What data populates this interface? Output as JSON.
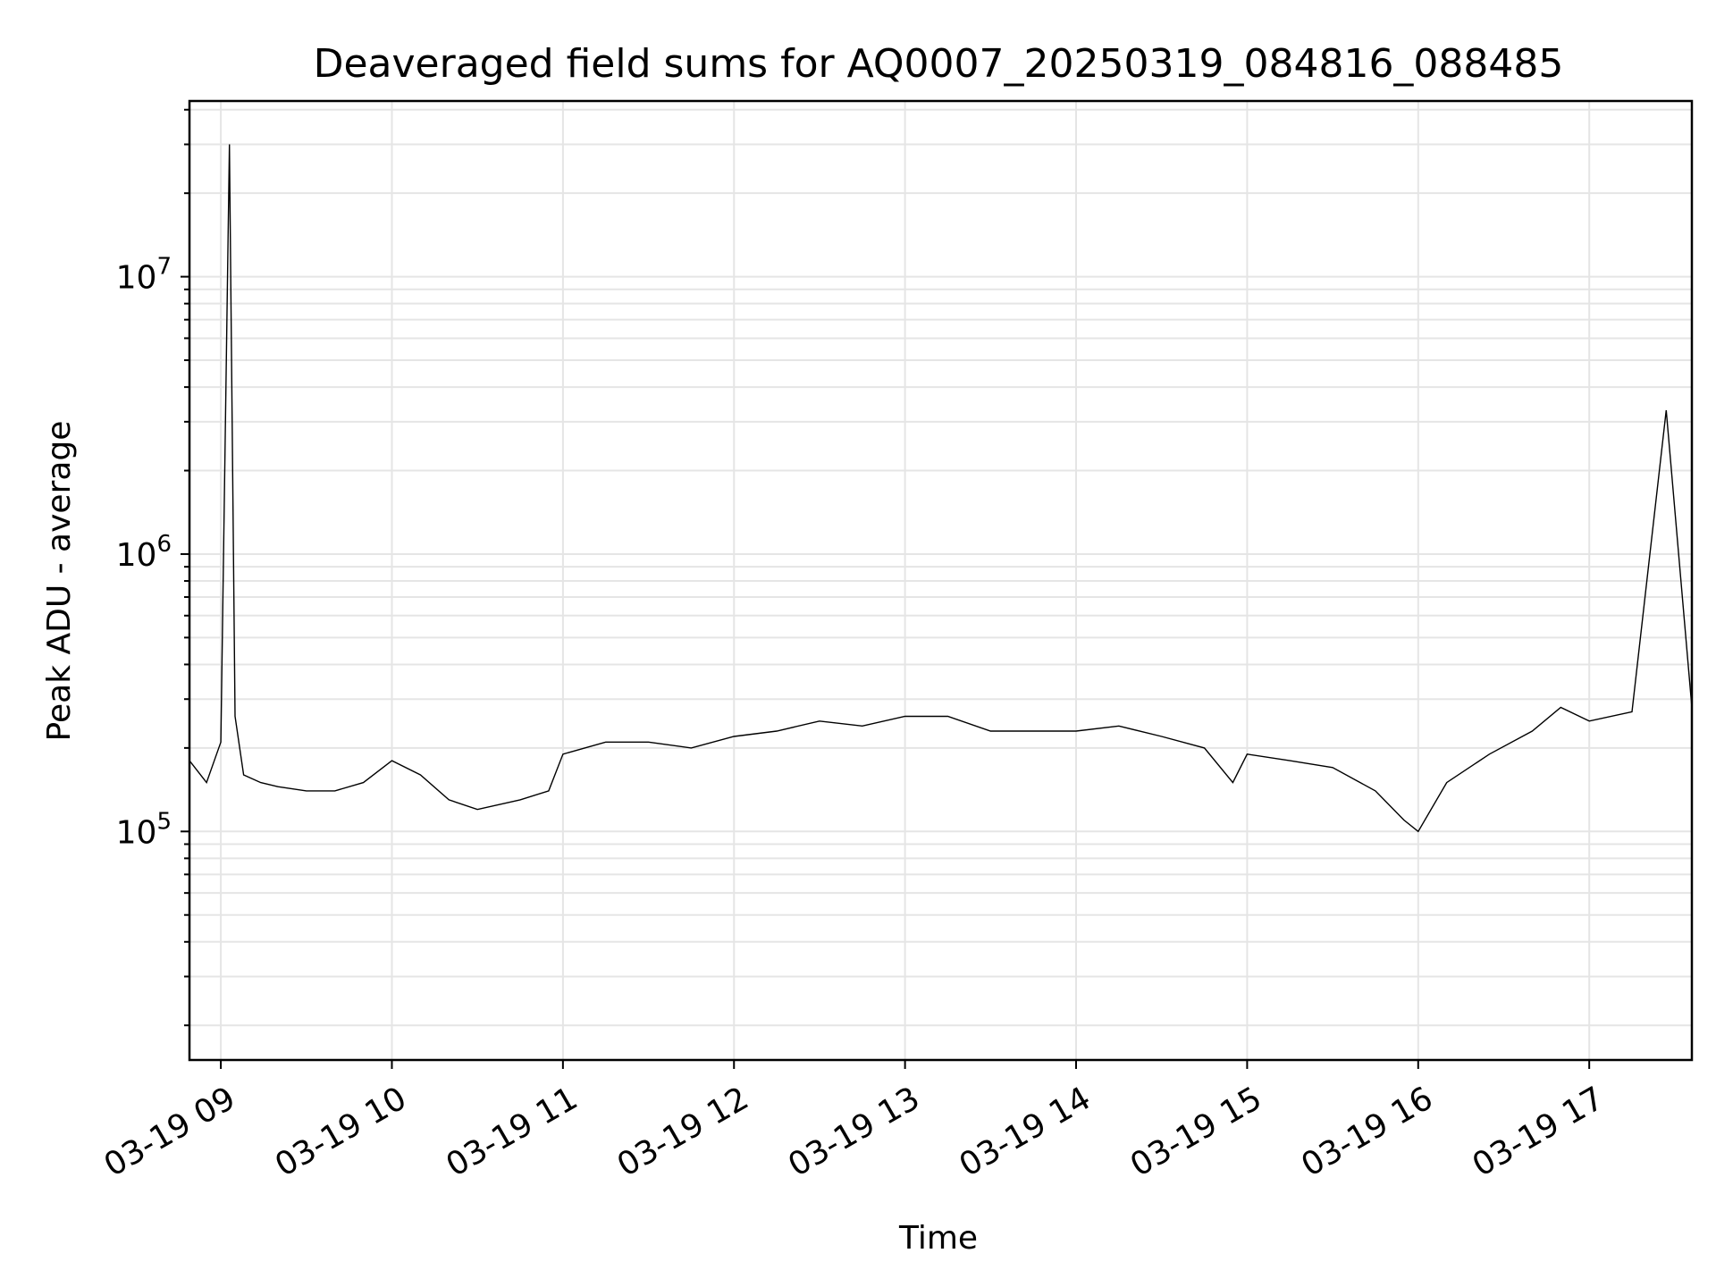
{
  "chart_data": {
    "type": "line",
    "title": "Deaveraged field sums for AQ0007_20250319_084816_088485",
    "xlabel": "Time",
    "ylabel": "Peak ADU - average",
    "x_axis": {
      "kind": "time",
      "range": [
        "2025-03-19T08:49:00",
        "2025-03-19T17:36:00"
      ],
      "tick_times": [
        "2025-03-19T09:00:00",
        "2025-03-19T10:00:00",
        "2025-03-19T11:00:00",
        "2025-03-19T12:00:00",
        "2025-03-19T13:00:00",
        "2025-03-19T14:00:00",
        "2025-03-19T15:00:00",
        "2025-03-19T16:00:00",
        "2025-03-19T17:00:00"
      ],
      "tick_labels": [
        "03-19 09",
        "03-19 10",
        "03-19 11",
        "03-19 12",
        "03-19 13",
        "03-19 14",
        "03-19 15",
        "03-19 16",
        "03-19 17"
      ]
    },
    "y_axis": {
      "scale": "log",
      "range": [
        15000,
        43000000
      ],
      "major_ticks": [
        100000,
        1000000,
        10000000
      ],
      "major_tick_labels": [
        {
          "base": "10",
          "exp": "5"
        },
        {
          "base": "10",
          "exp": "6"
        },
        {
          "base": "10",
          "exp": "7"
        }
      ],
      "minor_ticks": [
        20000,
        30000,
        40000,
        50000,
        60000,
        70000,
        80000,
        90000,
        200000,
        300000,
        400000,
        500000,
        600000,
        700000,
        800000,
        900000,
        2000000,
        3000000,
        4000000,
        5000000,
        6000000,
        7000000,
        8000000,
        9000000,
        20000000,
        30000000,
        40000000
      ]
    },
    "grid": true,
    "series": [
      {
        "color": "#000000",
        "x": [
          "2025-03-19T08:49:00",
          "2025-03-19T08:55:00",
          "2025-03-19T09:00:00",
          "2025-03-19T09:03:00",
          "2025-03-19T09:05:00",
          "2025-03-19T09:08:00",
          "2025-03-19T09:14:00",
          "2025-03-19T09:20:00",
          "2025-03-19T09:30:00",
          "2025-03-19T09:40:00",
          "2025-03-19T09:50:00",
          "2025-03-19T10:00:00",
          "2025-03-19T10:10:00",
          "2025-03-19T10:20:00",
          "2025-03-19T10:30:00",
          "2025-03-19T10:45:00",
          "2025-03-19T10:55:00",
          "2025-03-19T11:00:00",
          "2025-03-19T11:15:00",
          "2025-03-19T11:30:00",
          "2025-03-19T11:45:00",
          "2025-03-19T12:00:00",
          "2025-03-19T12:15:00",
          "2025-03-19T12:30:00",
          "2025-03-19T12:45:00",
          "2025-03-19T13:00:00",
          "2025-03-19T13:15:00",
          "2025-03-19T13:30:00",
          "2025-03-19T13:45:00",
          "2025-03-19T14:00:00",
          "2025-03-19T14:15:00",
          "2025-03-19T14:30:00",
          "2025-03-19T14:45:00",
          "2025-03-19T14:55:00",
          "2025-03-19T15:00:00",
          "2025-03-19T15:15:00",
          "2025-03-19T15:30:00",
          "2025-03-19T15:45:00",
          "2025-03-19T15:55:00",
          "2025-03-19T16:00:00",
          "2025-03-19T16:10:00",
          "2025-03-19T16:25:00",
          "2025-03-19T16:40:00",
          "2025-03-19T16:50:00",
          "2025-03-19T17:00:00",
          "2025-03-19T17:15:00",
          "2025-03-19T17:27:00",
          "2025-03-19T17:36:00"
        ],
        "y": [
          180000,
          150000,
          210000,
          30000000,
          260000,
          160000,
          150000,
          145000,
          140000,
          140000,
          150000,
          180000,
          160000,
          130000,
          120000,
          130000,
          140000,
          190000,
          210000,
          210000,
          200000,
          220000,
          230000,
          250000,
          240000,
          260000,
          260000,
          230000,
          230000,
          230000,
          240000,
          220000,
          200000,
          150000,
          190000,
          180000,
          170000,
          140000,
          110000,
          100000,
          150000,
          190000,
          230000,
          280000,
          250000,
          270000,
          3300000,
          280000
        ]
      }
    ]
  }
}
